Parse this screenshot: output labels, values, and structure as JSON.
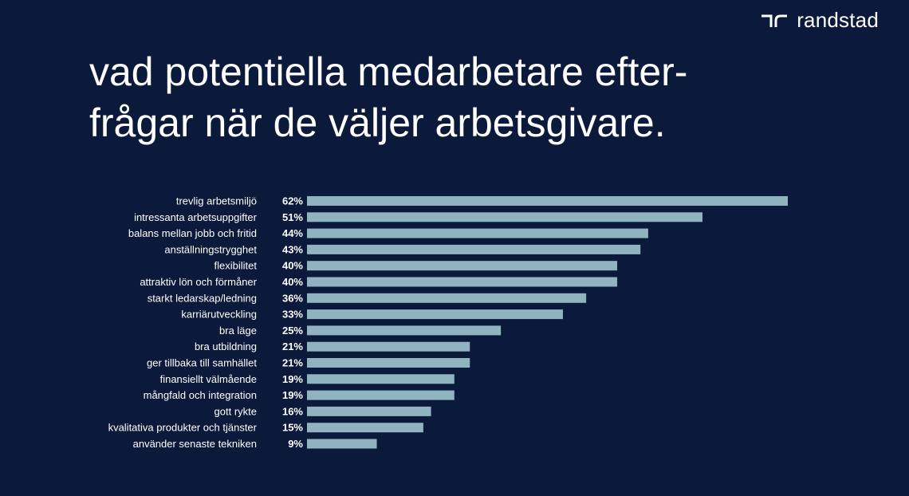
{
  "brand": {
    "name": "randstad"
  },
  "title_lines": [
    "vad potentiella medarbetare efter-",
    "frågar när de väljer arbetsgivare."
  ],
  "colors": {
    "background": "#0b1a3b",
    "bar": "#8fb3bf",
    "text": "#ffffff"
  },
  "chart_data": {
    "type": "bar",
    "orientation": "horizontal",
    "title": "vad potentiella medarbetare efterfrågar när de väljer arbetsgivare.",
    "categories": [
      "trevlig arbetsmiljö",
      "intressanta arbetsuppgifter",
      "balans mellan jobb och fritid",
      "anställningstrygghet",
      "flexibilitet",
      "attraktiv lön och förmåner",
      "starkt ledarskap/ledning",
      "karriärutveckling",
      "bra läge",
      "bra utbildning",
      "ger tillbaka till samhället",
      "finansiellt välmående",
      "mångfald och integration",
      "gott rykte",
      "kvalitativa produkter och tjänster",
      "använder senaste tekniken"
    ],
    "values": [
      62,
      51,
      44,
      43,
      40,
      40,
      36,
      33,
      25,
      21,
      21,
      19,
      19,
      16,
      15,
      9
    ],
    "value_labels": [
      "62%",
      "51%",
      "44%",
      "43%",
      "40%",
      "40%",
      "36%",
      "33%",
      "25%",
      "21%",
      "21%",
      "19%",
      "19%",
      "16%",
      "15%",
      "9%"
    ],
    "unit": "%",
    "xlim": [
      0,
      62
    ],
    "grid": false,
    "legend": "none"
  }
}
